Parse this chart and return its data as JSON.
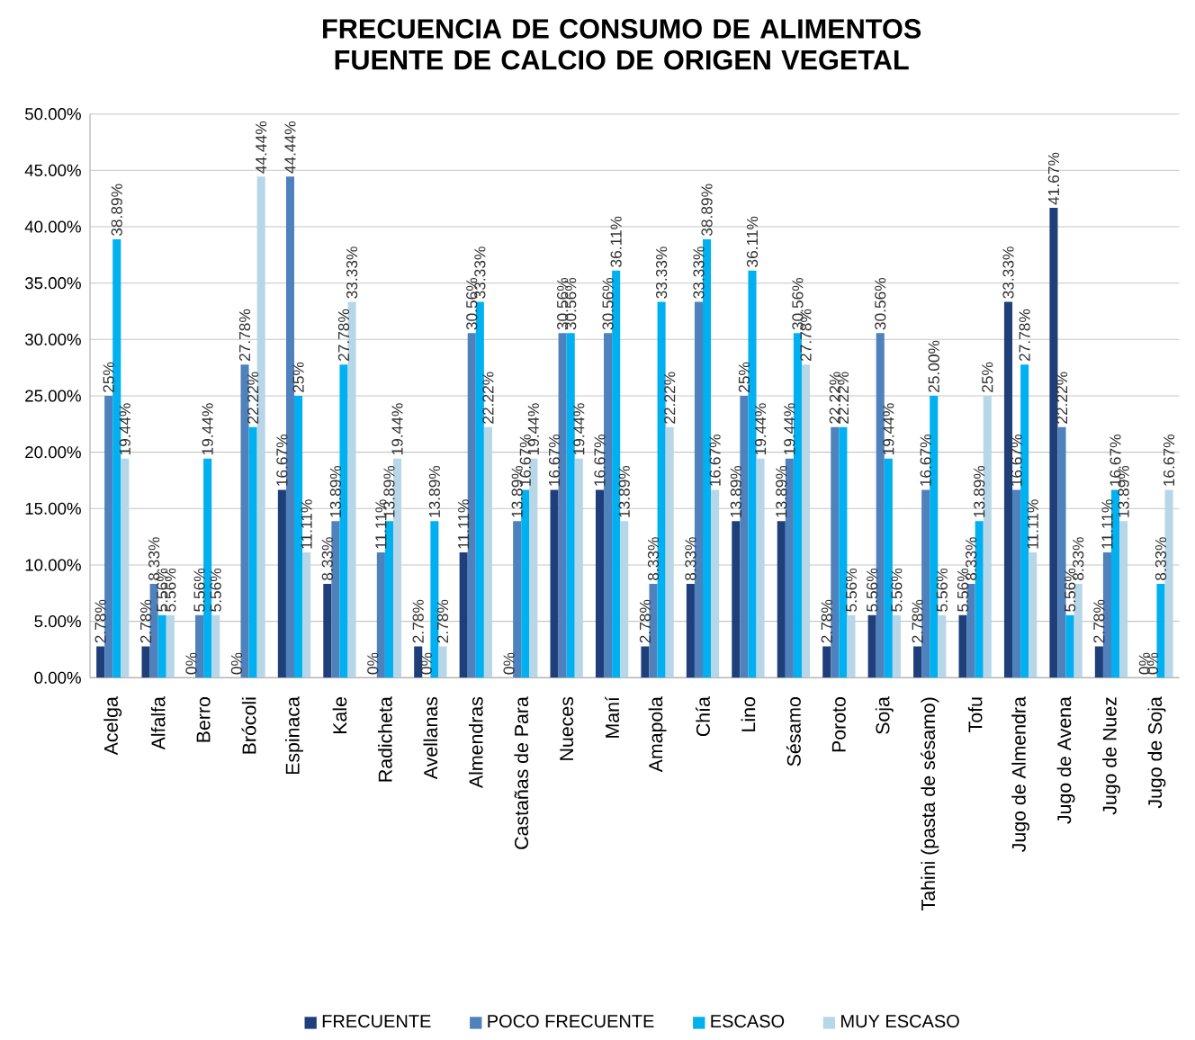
{
  "chart_data": {
    "type": "bar",
    "title": "FRECUENCIA DE CONSUMO DE ALIMENTOS FUENTE DE CALCIO DE ORIGEN VEGETAL",
    "categories": [
      "Acelga",
      "Alfalfa",
      "Berro",
      "Brócoli",
      "Espinaca",
      "Kale",
      "Radicheta",
      "Avellanas",
      "Almendras",
      "Castañas de Para",
      "Nueces",
      "Maní",
      "Amapola",
      "Chía",
      "Lino",
      "Sésamo",
      "Poroto",
      "Soja",
      "Tahini (pasta de sésamo)",
      "Tofu",
      "Jugo de Almendra",
      "Jugo de Avena",
      "Jugo de Nuez",
      "Jugo de Soja"
    ],
    "series": [
      {
        "name": "FRECUENTE",
        "color": "#1f3f7a",
        "values": [
          2.78,
          2.78,
          0,
          0,
          16.67,
          8.33,
          0,
          2.78,
          11.11,
          0,
          16.67,
          16.67,
          2.78,
          8.33,
          13.89,
          13.89,
          2.78,
          5.56,
          2.78,
          5.56,
          33.33,
          41.67,
          2.78,
          0
        ],
        "value_labels": [
          "2.78%",
          "2.78%",
          "0%",
          "0%",
          "16.67%",
          "8.33%",
          "0%",
          "2.78%",
          "11.11%",
          "0%",
          "16.67%",
          "16.67%",
          "2.78%",
          "8.33%",
          "13.89%",
          "13.89%",
          "2.78%",
          "5.56%",
          "2.78%",
          "5.56%",
          "33.33%",
          "41.67%",
          "2.78%",
          "0%"
        ]
      },
      {
        "name": "POCO FRECUENTE",
        "color": "#4f81bd",
        "values": [
          25,
          8.33,
          5.56,
          27.78,
          44.44,
          13.89,
          11.11,
          0,
          30.56,
          13.89,
          30.56,
          30.56,
          8.33,
          33.33,
          25,
          19.44,
          22.22,
          30.56,
          16.67,
          8.33,
          16.67,
          22.22,
          11.11,
          0
        ],
        "value_labels": [
          "25%",
          "8.33%",
          "5.56%",
          "27.78%",
          "44.44%",
          "13.89%",
          "11.11%",
          "0%",
          "30.56%",
          "13.89%",
          "30.56%",
          "30.56%",
          "8.33%",
          "33.33%",
          "25%",
          "19.44%",
          "22.22%",
          "30.56%",
          "16.67%",
          "8.33%",
          "16.67%",
          "22.22%",
          "11.11%",
          "0%"
        ]
      },
      {
        "name": "ESCASO",
        "color": "#00b0f0",
        "values": [
          38.89,
          5.56,
          19.44,
          22.22,
          25,
          27.78,
          13.89,
          13.89,
          33.33,
          16.67,
          30.56,
          36.11,
          33.33,
          38.89,
          36.11,
          30.56,
          22.22,
          19.44,
          25.0,
          13.89,
          27.78,
          5.56,
          16.67,
          8.33
        ],
        "value_labels": [
          "38.89%",
          "5.56%",
          "19.44%",
          "22.22%",
          "25%",
          "27.78%",
          "13.89%",
          "13.89%",
          "33.33%",
          "16.67%",
          "30.56%",
          "36.11%",
          "33.33%",
          "38.89%",
          "36.11%",
          "30.56%",
          "22.22%",
          "19.44%",
          "25.00%",
          "13.89%",
          "27.78%",
          "5.56%",
          "16.67%",
          "8.33%"
        ]
      },
      {
        "name": "MUY ESCASO",
        "color": "#b7d7e8",
        "values": [
          19.44,
          5.56,
          5.56,
          44.44,
          11.11,
          33.33,
          19.44,
          2.78,
          22.22,
          19.44,
          19.44,
          13.89,
          22.22,
          16.67,
          19.44,
          27.78,
          5.56,
          5.56,
          5.56,
          25,
          11.11,
          8.33,
          13.89,
          16.67
        ],
        "value_labels": [
          "19.44%",
          "5.56%",
          "5.56%",
          "44.44%",
          "11.11%",
          "33.33%",
          "19.44%",
          "2.78%",
          "22.22%",
          "19.44%",
          "19.44%",
          "13.89%",
          "22.22%",
          "16.67%",
          "19.44%",
          "27.78%",
          "5.56%",
          "5.56%",
          "5.56%",
          "25%",
          "11.11%",
          "8.33%",
          "13.89%",
          "16.67%"
        ]
      }
    ],
    "ylim": [
      0,
      50
    ],
    "yticks": [
      {
        "value": 0,
        "label": "0.00%"
      },
      {
        "value": 5,
        "label": "5.00%"
      },
      {
        "value": 10,
        "label": "10.00%"
      },
      {
        "value": 15,
        "label": "15.00%"
      },
      {
        "value": 20,
        "label": "20.00%"
      },
      {
        "value": 25,
        "label": "25.00%"
      },
      {
        "value": 30,
        "label": "30.00%"
      },
      {
        "value": 35,
        "label": "35.00%"
      },
      {
        "value": 40,
        "label": "40.00%"
      },
      {
        "value": 45,
        "label": "45.00%"
      },
      {
        "value": 50,
        "label": "50.00%"
      }
    ],
    "grid": "y",
    "legend": "bottom"
  }
}
